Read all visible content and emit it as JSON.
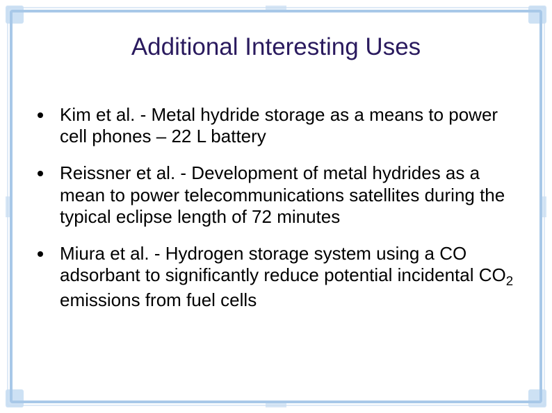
{
  "slide": {
    "title": "Additional Interesting Uses",
    "title_color": "#2a1a5e",
    "title_fontsize": 35,
    "background_color": "#ffffff",
    "frame_color": "#a8c8e8",
    "bullets": [
      {
        "text": "Kim et al. - Metal hydride storage as a means to power cell phones – 22 L battery"
      },
      {
        "text": "Reissner et al. - Development of metal hydrides as a mean to power telecommunications satellites during the typical eclipse length of 72 minutes"
      },
      {
        "text_html": "Miura et al. - Hydrogen storage system using a CO adsorbant to significantly reduce potential incidental CO<sub>2</sub> emissions from fuel cells",
        "text": "Miura et al. - Hydrogen storage system using a CO adsorbant to significantly reduce potential incidental CO2 emissions from fuel cells"
      }
    ],
    "bullet_fontsize": 26,
    "bullet_color": "#000000",
    "bullet_marker_color": "#000000"
  }
}
